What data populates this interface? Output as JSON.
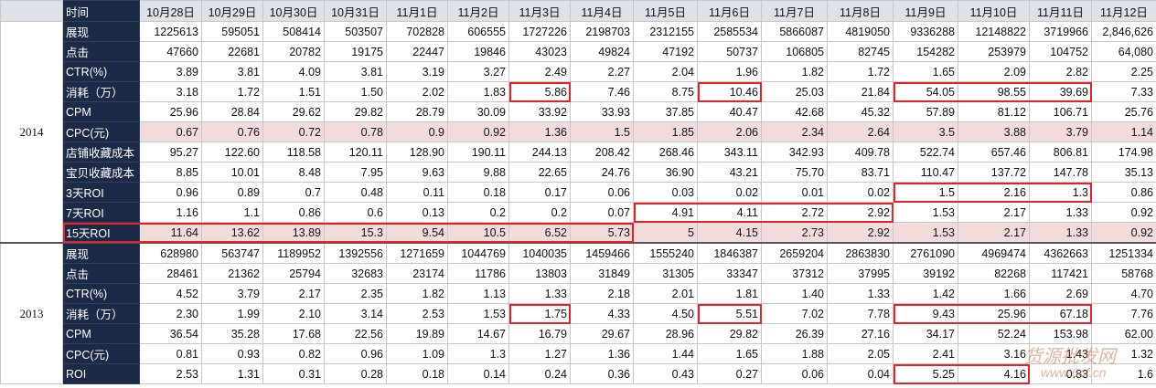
{
  "header": {
    "label": "时间",
    "dates": [
      "10月28日",
      "10月29日",
      "10月30日",
      "10月31日",
      "11月1日",
      "11月2日",
      "11月3日",
      "11月4日",
      "11月5日",
      "11月6日",
      "11月7日",
      "11月8日",
      "11月9日",
      "11月10日",
      "11月11日",
      "11月12日"
    ]
  },
  "sections": [
    {
      "year": "2014",
      "rows": [
        {
          "label": "展现",
          "values": [
            "1225613",
            "595051",
            "508414",
            "503507",
            "702828",
            "606555",
            "1727226",
            "2198703",
            "2312155",
            "2585534",
            "5866087",
            "4819050",
            "9336288",
            "12148822",
            "3719966",
            "2,846,626"
          ]
        },
        {
          "label": "点击",
          "values": [
            "47660",
            "22681",
            "20782",
            "19175",
            "22447",
            "19846",
            "43023",
            "49824",
            "47192",
            "50737",
            "106805",
            "82745",
            "154282",
            "253979",
            "104752",
            "64,080"
          ]
        },
        {
          "label": "CTR(%)",
          "values": [
            "3.89",
            "3.81",
            "4.09",
            "3.81",
            "3.19",
            "3.27",
            "2.49",
            "2.27",
            "2.04",
            "1.96",
            "1.82",
            "1.72",
            "1.65",
            "2.09",
            "2.82",
            "2.25"
          ]
        },
        {
          "label": "消耗（万）",
          "values": [
            "3.18",
            "1.72",
            "1.51",
            "1.50",
            "2.02",
            "1.83",
            "5.86",
            "7.46",
            "8.75",
            "10.46",
            "25.03",
            "21.84",
            "54.05",
            "98.55",
            "39.69",
            "7.33"
          ]
        },
        {
          "label": "CPM",
          "values": [
            "25.96",
            "28.84",
            "29.62",
            "29.82",
            "28.79",
            "30.09",
            "33.92",
            "33.93",
            "37.85",
            "40.47",
            "42.68",
            "45.32",
            "57.89",
            "81.12",
            "106.71",
            "25.76"
          ]
        },
        {
          "label": "CPC(元)",
          "values": [
            "0.67",
            "0.76",
            "0.72",
            "0.78",
            "0.9",
            "0.92",
            "1.36",
            "1.5",
            "1.85",
            "2.06",
            "2.34",
            "2.64",
            "3.5",
            "3.88",
            "3.79",
            "1.14"
          ]
        },
        {
          "label": "店铺收藏成本",
          "values": [
            "95.27",
            "122.60",
            "118.58",
            "120.11",
            "128.90",
            "190.11",
            "244.13",
            "208.42",
            "268.46",
            "343.11",
            "342.93",
            "409.78",
            "522.74",
            "657.46",
            "806.81",
            "174.98"
          ]
        },
        {
          "label": "宝贝收藏成本",
          "values": [
            "8.85",
            "10.01",
            "8.48",
            "7.95",
            "9.63",
            "9.88",
            "22.65",
            "24.76",
            "36.90",
            "43.21",
            "75.70",
            "83.71",
            "110.47",
            "137.72",
            "147.78",
            "35.13"
          ]
        },
        {
          "label": "3天ROI",
          "values": [
            "0.96",
            "0.89",
            "0.7",
            "0.48",
            "0.11",
            "0.18",
            "0.17",
            "0.06",
            "0.03",
            "0.02",
            "0.01",
            "0.02",
            "1.5",
            "2.16",
            "1.3",
            "0.86"
          ]
        },
        {
          "label": "7天ROI",
          "values": [
            "1.16",
            "1.1",
            "0.86",
            "0.6",
            "0.13",
            "0.2",
            "0.2",
            "0.07",
            "4.91",
            "4.11",
            "2.72",
            "2.92",
            "1.53",
            "2.17",
            "1.33",
            "0.92"
          ]
        },
        {
          "label": "15天ROI",
          "values": [
            "11.64",
            "13.62",
            "13.89",
            "15.3",
            "9.54",
            "10.5",
            "6.52",
            "5.73",
            "5",
            "4.15",
            "2.73",
            "2.92",
            "1.53",
            "2.17",
            "1.33",
            "0.92"
          ]
        }
      ]
    },
    {
      "year": "2013",
      "rows": [
        {
          "label": "展现",
          "values": [
            "628980",
            "563747",
            "1189952",
            "1392556",
            "1271659",
            "1044769",
            "1040035",
            "1459466",
            "1555240",
            "1846387",
            "2659204",
            "2863830",
            "2761090",
            "4969474",
            "4362663",
            "1251334"
          ]
        },
        {
          "label": "点击",
          "values": [
            "28461",
            "21362",
            "25794",
            "32683",
            "23174",
            "11786",
            "13803",
            "31849",
            "31305",
            "33347",
            "37312",
            "37995",
            "39192",
            "82268",
            "117421",
            "58768"
          ]
        },
        {
          "label": "CTR(%)",
          "values": [
            "4.52",
            "3.79",
            "2.17",
            "2.35",
            "1.82",
            "1.13",
            "1.33",
            "2.18",
            "2.01",
            "1.81",
            "1.40",
            "1.33",
            "1.42",
            "1.66",
            "2.69",
            "4.70"
          ]
        },
        {
          "label": "消耗（万）",
          "values": [
            "2.30",
            "1.99",
            "2.10",
            "3.14",
            "2.53",
            "1.53",
            "1.75",
            "4.33",
            "4.50",
            "5.51",
            "7.02",
            "7.78",
            "9.43",
            "25.96",
            "67.18",
            "7.76"
          ]
        },
        {
          "label": "CPM",
          "values": [
            "36.54",
            "35.28",
            "17.68",
            "22.56",
            "19.89",
            "14.67",
            "16.79",
            "29.67",
            "28.96",
            "29.82",
            "26.39",
            "27.16",
            "34.17",
            "52.24",
            "153.98",
            "62.00"
          ]
        },
        {
          "label": "CPC(元)",
          "values": [
            "0.81",
            "0.93",
            "0.82",
            "0.96",
            "1.09",
            "1.3",
            "1.27",
            "1.36",
            "1.44",
            "1.65",
            "1.88",
            "2.05",
            "2.41",
            "3.16",
            "1.43",
            "1.32"
          ]
        },
        {
          "label": "ROI",
          "values": [
            "2.53",
            "1.31",
            "0.31",
            "0.28",
            "0.18",
            "0.14",
            "0.24",
            "0.36",
            "0.43",
            "0.27",
            "0.06",
            "0.04",
            "5.25",
            "4.16",
            "0.83",
            "1.6"
          ]
        }
      ]
    }
  ],
  "watermark": [
    "货源批发网",
    "www.6pf.cn"
  ]
}
